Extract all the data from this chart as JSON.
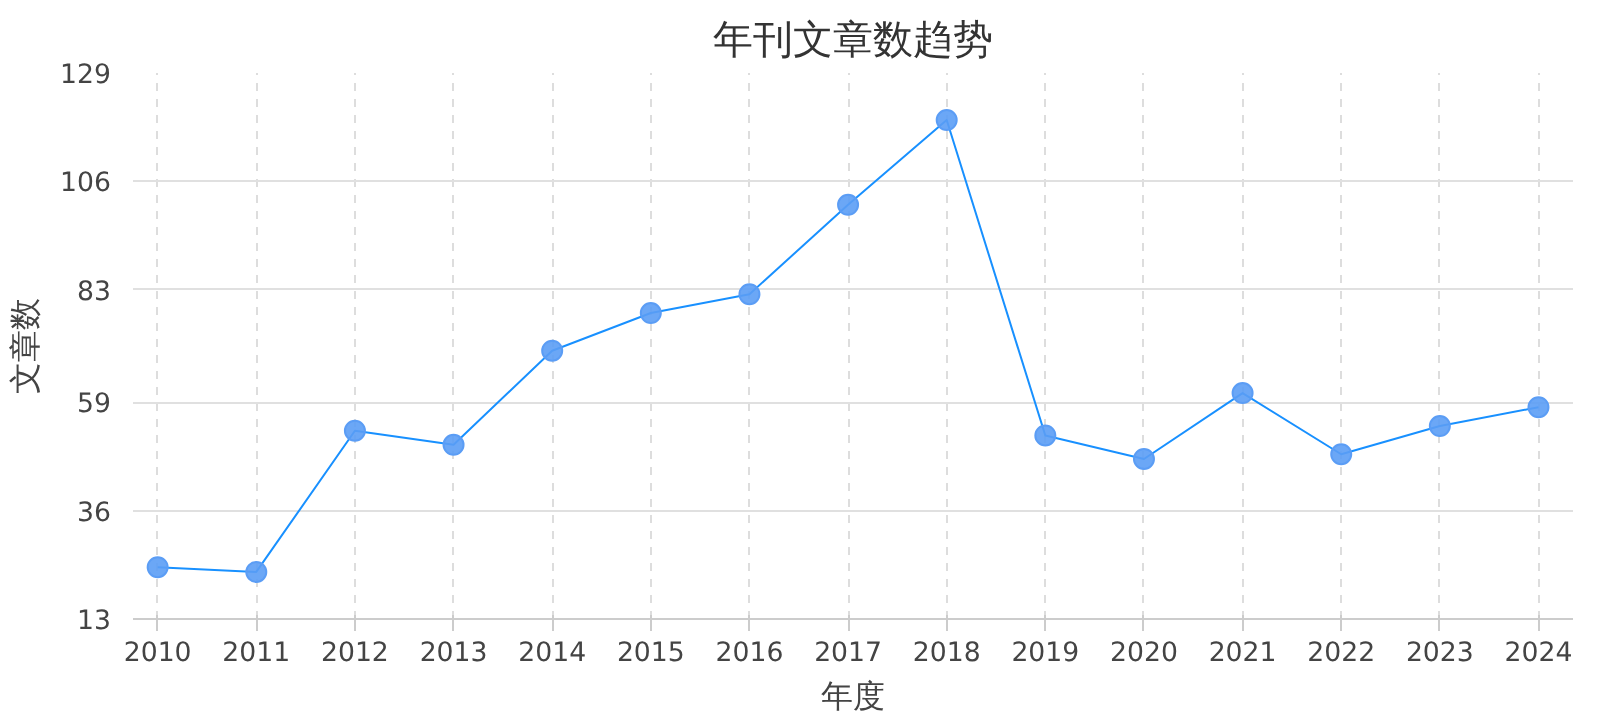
{
  "chart_data": {
    "type": "line",
    "title": "年刊文章数趋势",
    "xlabel": "年度",
    "ylabel": "文章数",
    "x": [
      2010,
      2011,
      2012,
      2013,
      2014,
      2015,
      2016,
      2017,
      2018,
      2019,
      2020,
      2021,
      2022,
      2023,
      2024
    ],
    "series": [
      {
        "color": "#1890ff",
        "values": [
          24,
          23,
          53,
          50,
          70,
          78,
          82,
          101,
          119,
          52,
          47,
          61,
          48,
          54,
          58
        ]
      }
    ],
    "xlim": [
      2009.75,
      2024.35
    ],
    "xticks": [
      2010,
      2011,
      2012,
      2013,
      2014,
      2015,
      2016,
      2017,
      2018,
      2019,
      2020,
      2021,
      2022,
      2023,
      2024
    ],
    "ylim": [
      13,
      129
    ],
    "yticks": [
      13,
      36,
      59,
      83,
      106,
      129
    ],
    "grid": true,
    "marker": "circle",
    "line_style": "solid"
  }
}
